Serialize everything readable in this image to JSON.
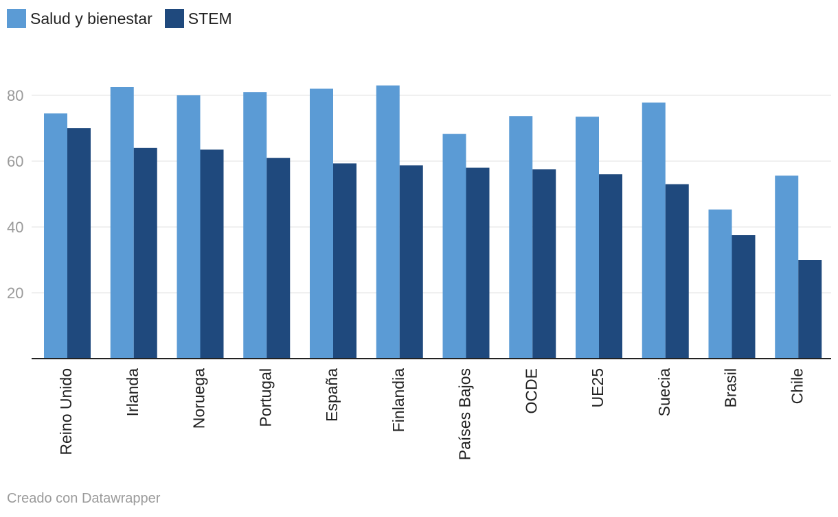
{
  "legend": {
    "items": [
      {
        "label": "Salud y bienestar",
        "color": "#5b9bd5"
      },
      {
        "label": "STEM",
        "color": "#1f497d"
      }
    ]
  },
  "footer": {
    "credit": "Creado con Datawrapper"
  },
  "chart_data": {
    "type": "bar",
    "categories": [
      "Reino Unido",
      "Irlanda",
      "Noruega",
      "Portugal",
      "España",
      "Finlandia",
      "Países Bajos",
      "OCDE",
      "UE25",
      "Suecia",
      "Brasil",
      "Chile"
    ],
    "series": [
      {
        "name": "Salud y bienestar",
        "color": "#5b9bd5",
        "values": [
          74.5,
          82.5,
          80,
          81,
          82,
          83,
          68.3,
          73.7,
          73.5,
          77.8,
          45.3,
          55.6
        ]
      },
      {
        "name": "STEM",
        "color": "#1f497d",
        "values": [
          70,
          64,
          63.5,
          61,
          59.3,
          58.7,
          58,
          57.5,
          56,
          53,
          37.5,
          30
        ]
      }
    ],
    "y_ticks": [
      20,
      40,
      60,
      80
    ],
    "ylim": [
      0,
      100
    ],
    "grid": true,
    "legend_position": "top-left"
  }
}
